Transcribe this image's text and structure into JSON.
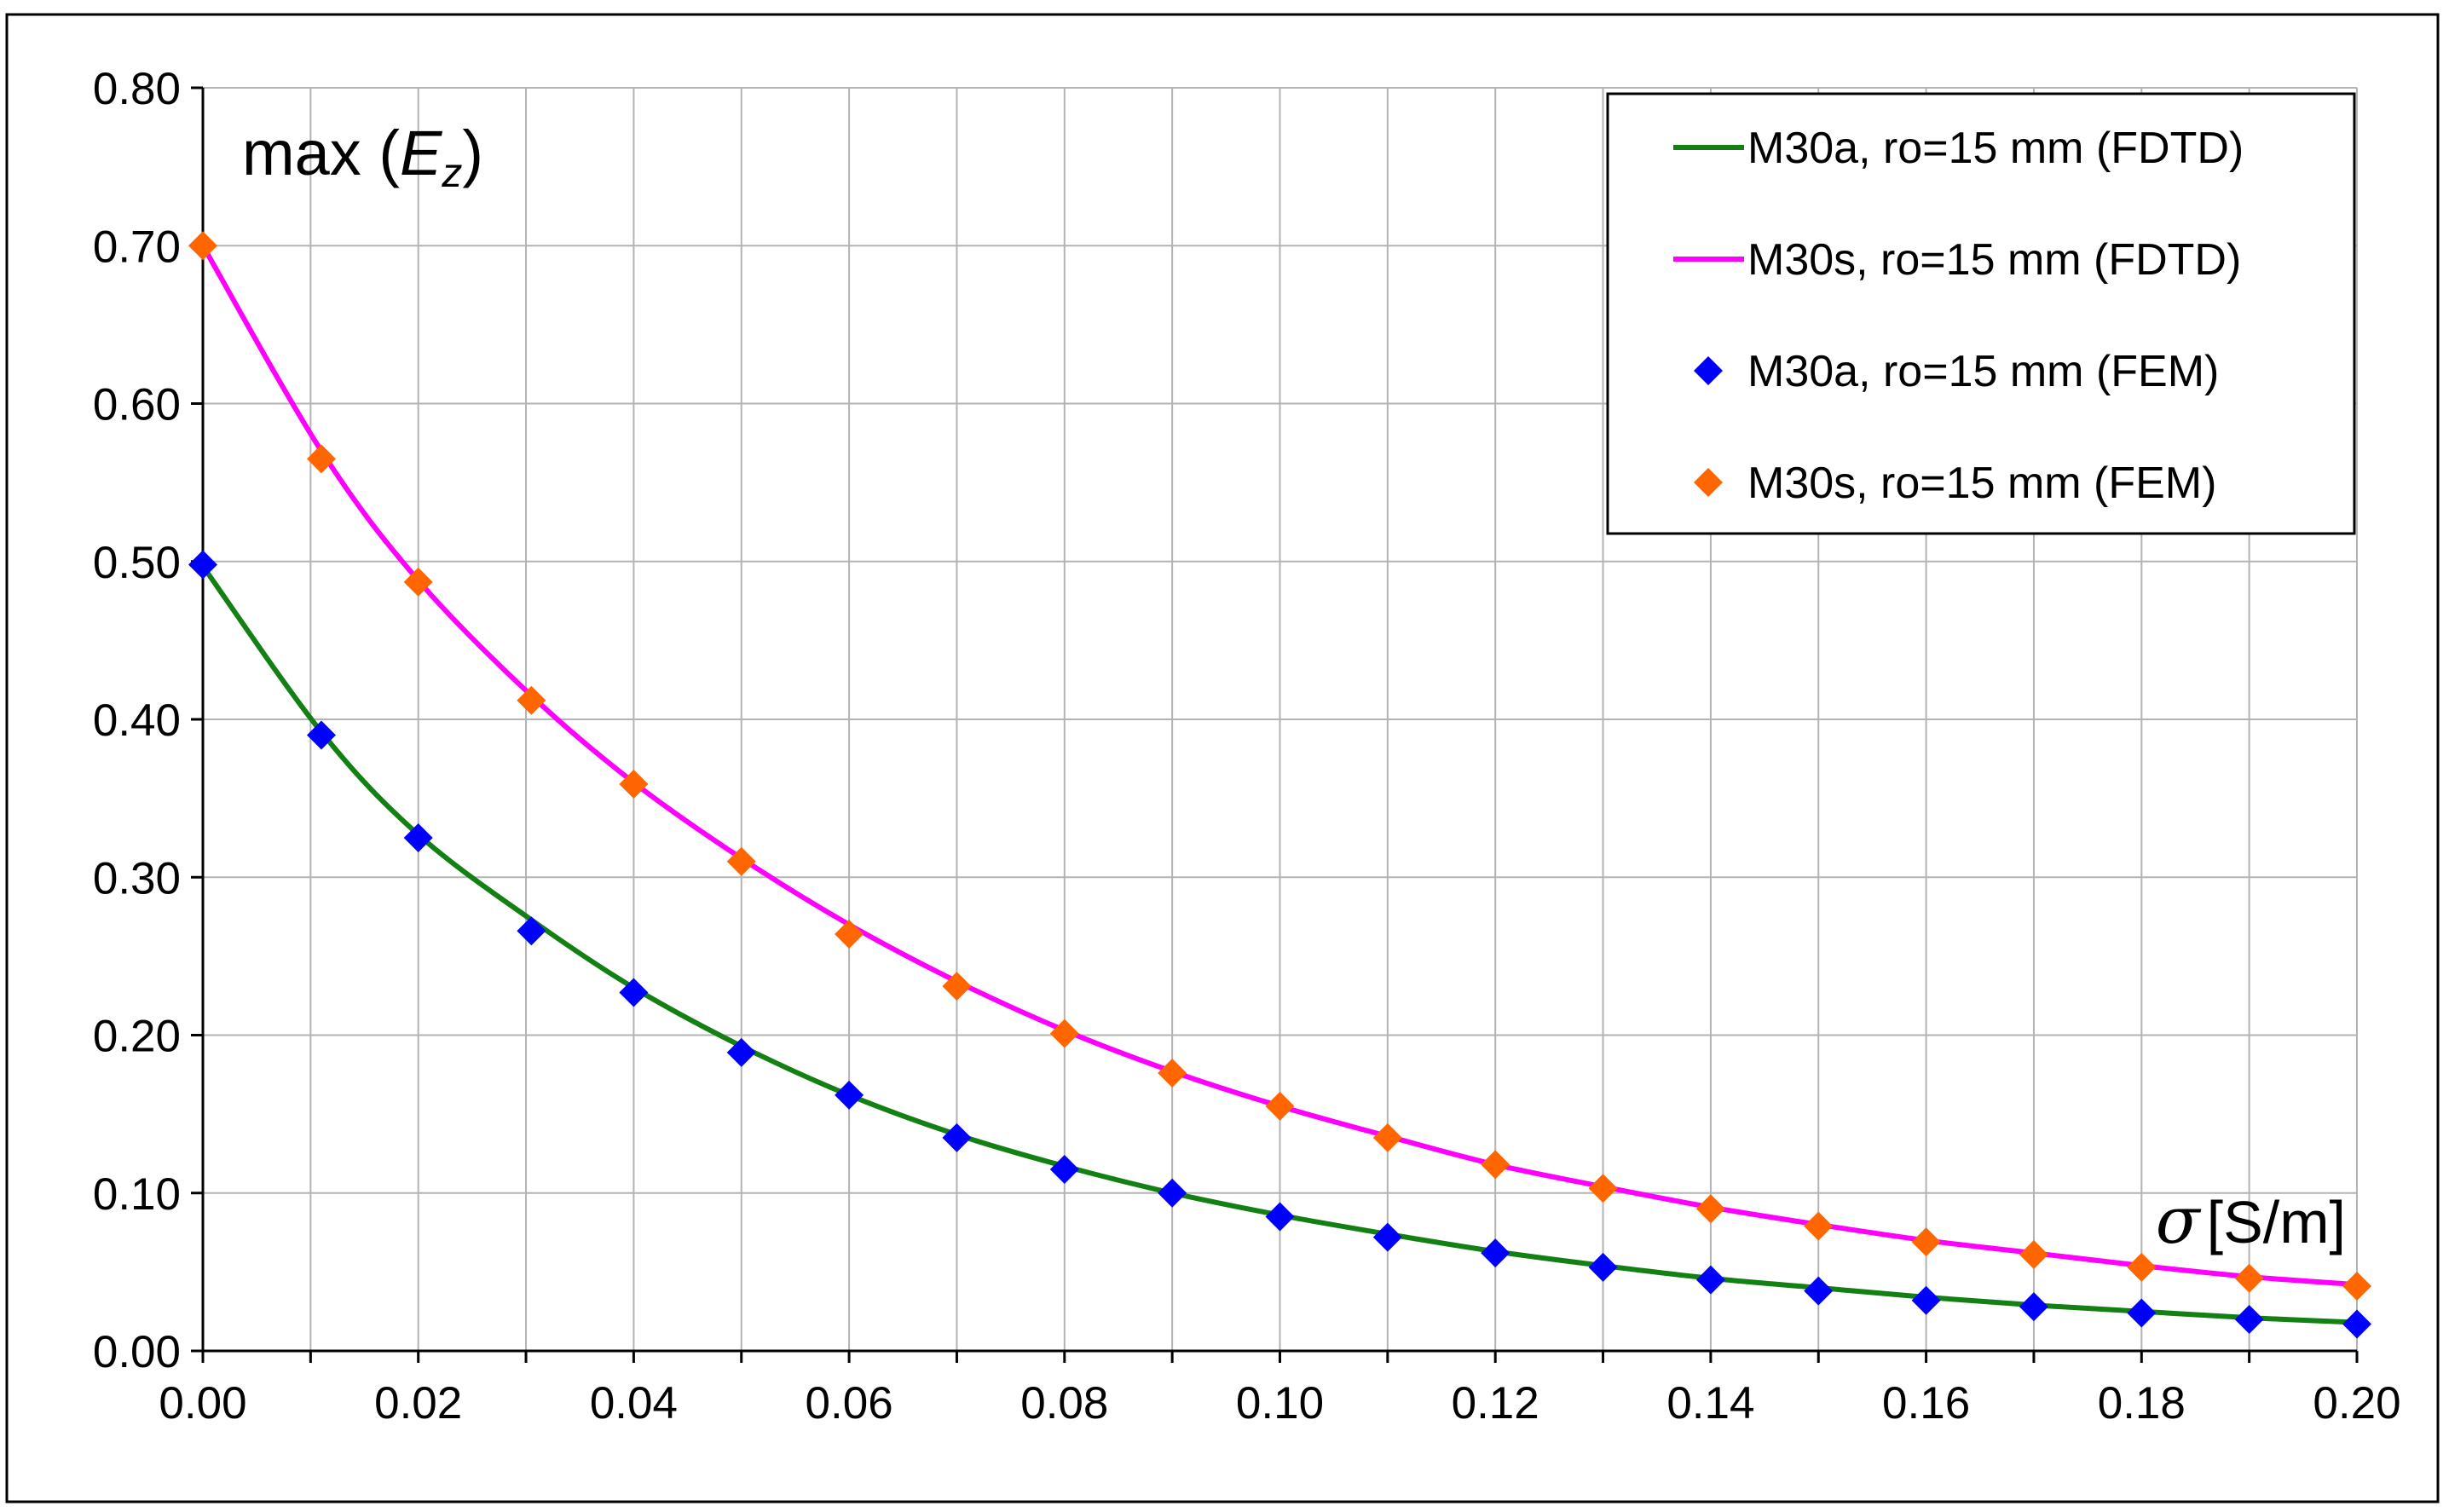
{
  "chart_data": {
    "type": "line",
    "ylabel": {
      "prefix": "max (",
      "var": "E",
      "sub": "z",
      "suffix": ")"
    },
    "xlabel": {
      "symbol": "σ",
      "unit": "[S/m]"
    },
    "xlim": [
      0,
      0.2
    ],
    "ylim": [
      0,
      0.8
    ],
    "x_ticks": [
      "0.00",
      "0.02",
      "0.04",
      "0.06",
      "0.08",
      "0.10",
      "0.12",
      "0.14",
      "0.16",
      "0.18",
      "0.20"
    ],
    "y_ticks": [
      "0.00",
      "0.10",
      "0.20",
      "0.30",
      "0.40",
      "0.50",
      "0.60",
      "0.70",
      "0.80"
    ],
    "grid": true,
    "legend_position": "top-right",
    "x": [
      0.0,
      0.011,
      0.02,
      0.0305,
      0.04,
      0.05,
      0.06,
      0.07,
      0.08,
      0.09,
      0.1,
      0.11,
      0.12,
      0.13,
      0.14,
      0.15,
      0.16,
      0.17,
      0.18,
      0.19,
      0.2
    ],
    "series": [
      {
        "name": "M30a, ro=15 mm (FDTD)",
        "kind": "line",
        "color": "#138013",
        "values": [
          0.497,
          0.392,
          0.327,
          0.273,
          0.23,
          0.193,
          0.162,
          0.137,
          0.117,
          0.1,
          0.086,
          0.074,
          0.063,
          0.054,
          0.046,
          0.04,
          0.034,
          0.029,
          0.025,
          0.021,
          0.018
        ]
      },
      {
        "name": "M30s, ro=15 mm (FDTD)",
        "kind": "line",
        "color": "#ff00ff",
        "values": [
          0.7,
          0.57,
          0.488,
          0.415,
          0.36,
          0.312,
          0.27,
          0.234,
          0.203,
          0.177,
          0.155,
          0.136,
          0.118,
          0.104,
          0.091,
          0.08,
          0.07,
          0.062,
          0.054,
          0.047,
          0.042
        ]
      },
      {
        "name": "M30a, ro=15 mm (FEM)",
        "kind": "scatter",
        "color": "#0000ff",
        "values": [
          0.498,
          0.39,
          0.325,
          0.266,
          0.227,
          0.189,
          0.162,
          0.135,
          0.115,
          0.1,
          0.085,
          0.072,
          0.062,
          0.053,
          0.045,
          0.038,
          0.032,
          0.028,
          0.024,
          0.02,
          0.017
        ]
      },
      {
        "name": "M30s, ro=15 mm (FEM)",
        "kind": "scatter",
        "color": "#ff6600",
        "values": [
          0.7,
          0.565,
          0.487,
          0.412,
          0.359,
          0.31,
          0.264,
          0.231,
          0.201,
          0.176,
          0.155,
          0.135,
          0.118,
          0.103,
          0.09,
          0.079,
          0.069,
          0.061,
          0.053,
          0.046,
          0.041
        ]
      }
    ]
  }
}
